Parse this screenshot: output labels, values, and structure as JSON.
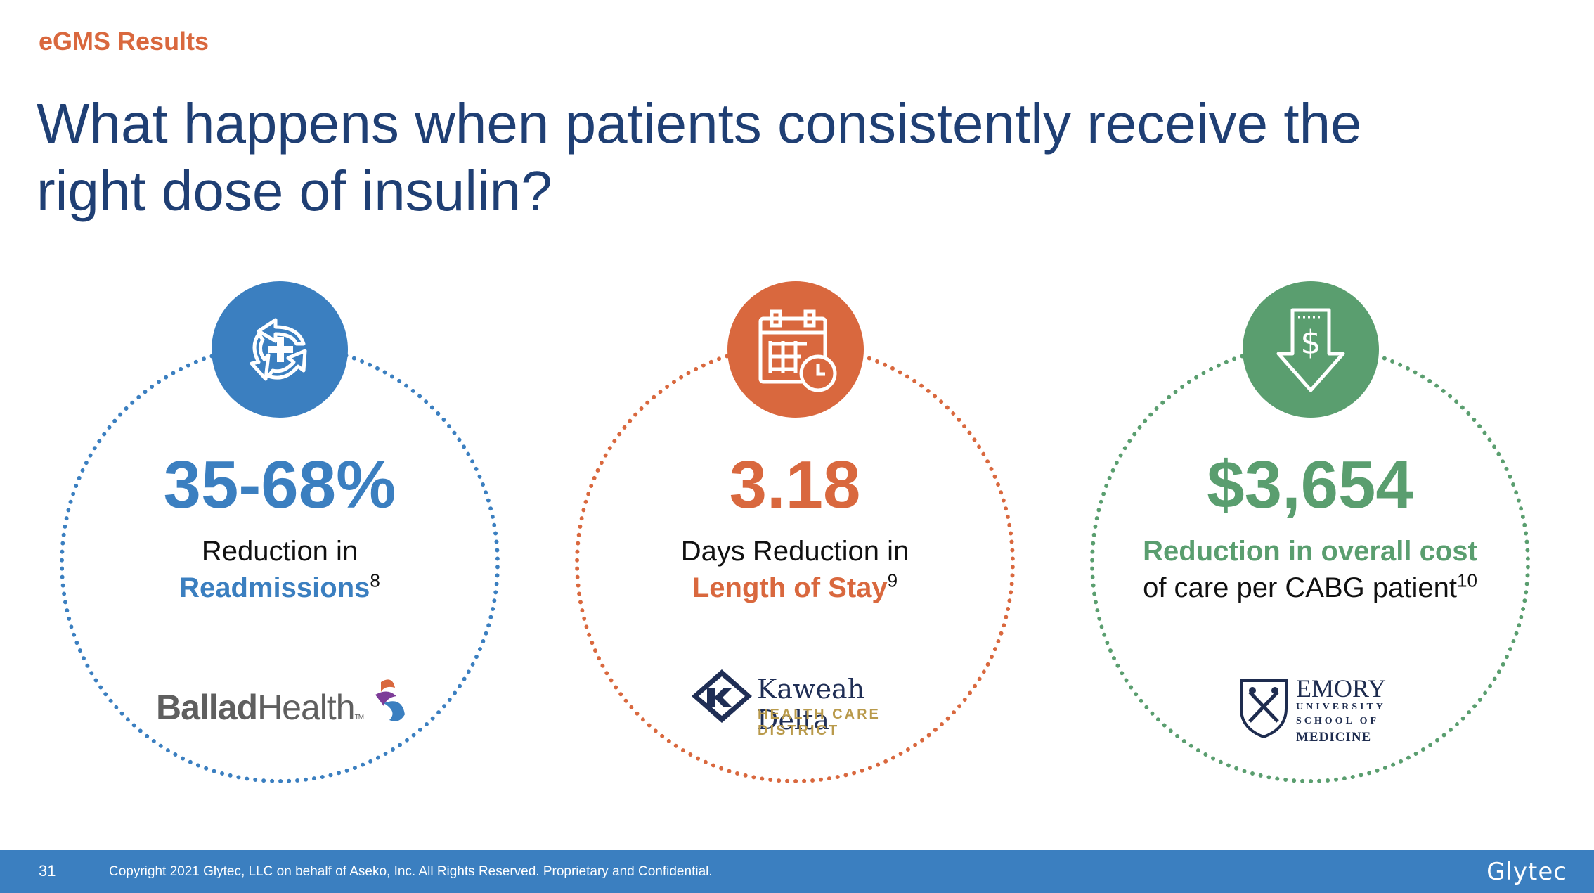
{
  "slide": {
    "eyebrow": "eGMS Results",
    "headline": "What happens when patients consistently receive the right dose of insulin?"
  },
  "columns": [
    {
      "icon": "recycle-plus-icon",
      "color": "#3B7FC0",
      "stat": "35-68%",
      "line1": "Reduction in",
      "emphasis": "Readmissions",
      "footnote": "8",
      "logo_label": "BalladHealth"
    },
    {
      "icon": "calendar-clock-icon",
      "color": "#D9683E",
      "stat": "3.18",
      "line1": "Days Reduction in",
      "emphasis": "Length of Stay",
      "footnote": "9",
      "logo_title": "Kaweah Delta",
      "logo_sub": "HEALTH CARE DISTRICT"
    },
    {
      "icon": "dollar-down-arrow-icon",
      "color": "#5A9E6F",
      "stat": "$3,654",
      "emphasis": "Reduction in overall cost",
      "line2": "of care per CABG patient",
      "footnote": "10",
      "logo_name": "EMORY",
      "logo_sub1": "UNIVERSITY",
      "logo_sub2": "SCHOOL OF",
      "logo_sub3": "MEDICINE"
    }
  ],
  "footer": {
    "page_number": "31",
    "copyright": "Copyright 2021 Glytec, LLC on behalf of Aseko, Inc. All Rights Reserved. Proprietary and Confidential.",
    "brand": "Glytec"
  }
}
